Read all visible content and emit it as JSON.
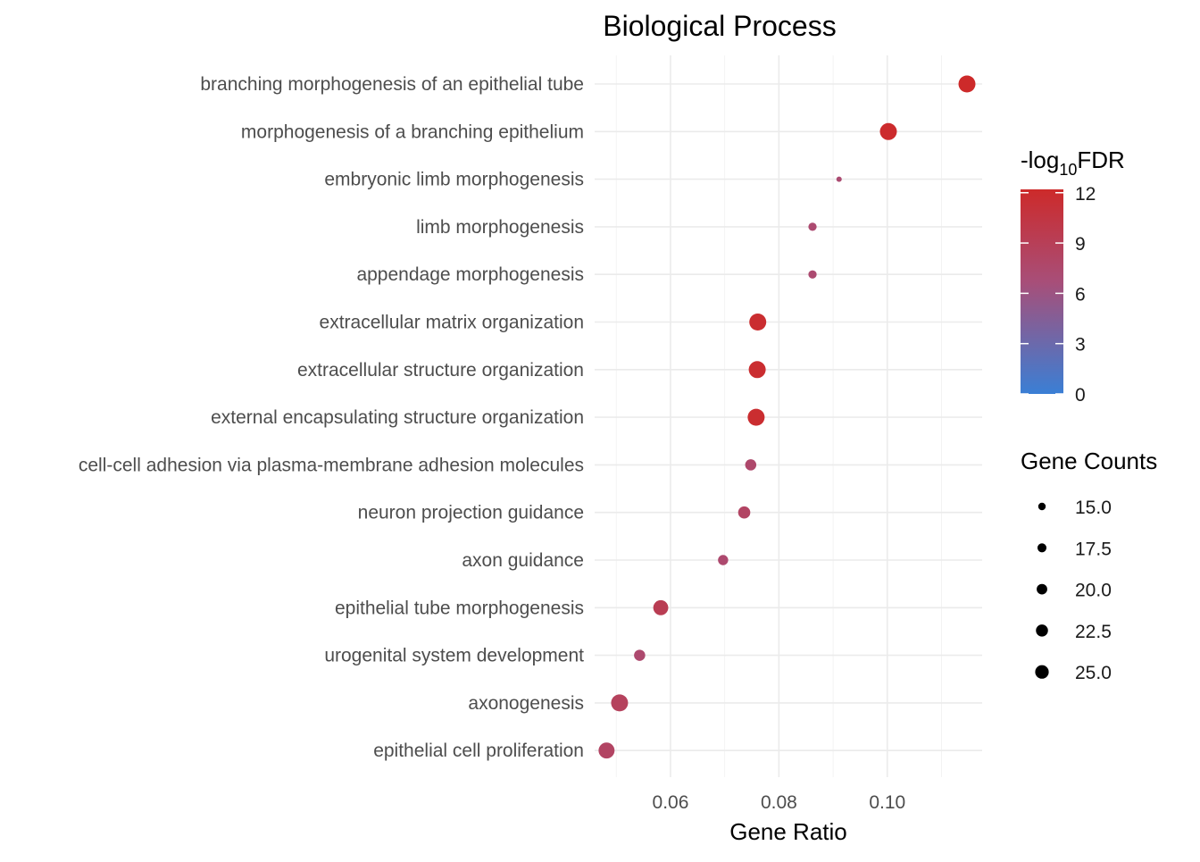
{
  "chart_data": {
    "type": "scatter",
    "title": "Biological Process",
    "xlabel": "Gene Ratio",
    "ylabel": "",
    "xlim": [
      0.046,
      0.1175
    ],
    "x_ticks": [
      0.06,
      0.08,
      0.1
    ],
    "x_tick_labels": [
      "0.06",
      "0.08",
      "0.10"
    ],
    "grid": true,
    "categories": [
      "branching morphogenesis of an epithelial tube",
      "morphogenesis of a branching epithelium",
      "embryonic limb morphogenesis",
      "limb morphogenesis",
      "appendage morphogenesis",
      "extracellular matrix organization",
      "extracellular structure organization",
      "external encapsulating structure organization",
      "cell-cell adhesion via plasma-membrane adhesion molecules",
      "neuron projection guidance",
      "axon guidance",
      "epithelial tube morphogenesis",
      "urogenital system development",
      "axonogenesis",
      "epithelial cell proliferation"
    ],
    "gene_ratio": [
      0.1147,
      0.1002,
      0.0911,
      0.0862,
      0.0862,
      0.0761,
      0.076,
      0.0758,
      0.0748,
      0.0736,
      0.0697,
      0.0582,
      0.0543,
      0.0506,
      0.0482
    ],
    "neg_log10_fdr": [
      12.2,
      12.0,
      7.2,
      7.3,
      7.3,
      11.8,
      11.8,
      11.8,
      7.6,
      8.2,
      7.4,
      9.3,
      7.4,
      8.6,
      8.2
    ],
    "gene_counts": [
      25,
      25,
      13,
      16,
      16,
      25,
      25,
      25,
      19,
      20,
      18,
      23,
      19,
      25,
      24
    ],
    "color_legend": {
      "title_main": "-log",
      "title_sub": "10",
      "title_end": "FDR",
      "min": 0,
      "max": 12.2,
      "ticks": [
        0,
        3,
        6,
        9,
        12
      ],
      "tick_labels": [
        "0",
        "3",
        "6",
        "9",
        "12"
      ],
      "low_color": "#3a7fd5",
      "mid_color": "#a84e78",
      "high_color": "#cd2a2a"
    },
    "size_legend": {
      "title": "Gene Counts",
      "values": [
        15,
        17.5,
        20,
        22.5,
        25
      ],
      "labels": [
        "15.0",
        "17.5",
        "20.0",
        "22.5",
        "25.0"
      ],
      "color": "#000000"
    },
    "legend_position": "right"
  }
}
